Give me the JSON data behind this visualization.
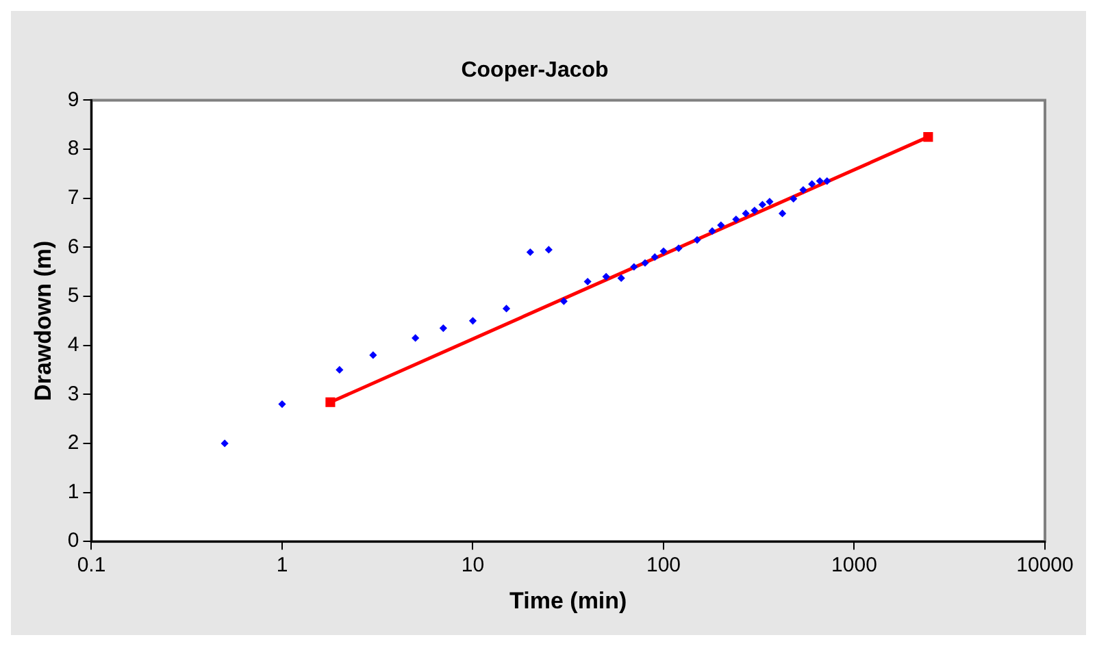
{
  "chart_data": {
    "type": "scatter",
    "title": "Cooper-Jacob",
    "xlabel": "Time (min)",
    "ylabel": "Drawdown (m)",
    "log": "x",
    "grid": false,
    "legend": false,
    "xlim": [
      0.1,
      10000
    ],
    "xticks": [
      0.1,
      1,
      10,
      100,
      1000,
      10000
    ],
    "ylim": [
      0,
      9
    ],
    "yticks": [
      0,
      1,
      2,
      3,
      4,
      5,
      6,
      7,
      8,
      9
    ],
    "series": [
      {
        "type": "scatter",
        "color": "#0000ff",
        "marker": "diamond",
        "x": [
          0.5,
          1,
          2,
          3,
          5,
          7,
          10,
          15,
          20,
          25,
          30,
          40,
          50,
          60,
          70,
          80,
          90,
          100,
          120,
          150,
          180,
          200,
          240,
          270,
          300,
          330,
          360,
          420,
          480,
          540,
          600,
          660,
          720
        ],
        "values": [
          2.0,
          2.8,
          3.5,
          3.8,
          4.15,
          4.35,
          4.5,
          4.75,
          5.9,
          5.95,
          4.9,
          5.3,
          5.4,
          5.37,
          5.6,
          5.68,
          5.8,
          5.92,
          5.98,
          6.15,
          6.33,
          6.45,
          6.57,
          6.69,
          6.75,
          6.87,
          6.93,
          6.69,
          6.99,
          7.17,
          7.29,
          7.35,
          7.35
        ]
      },
      {
        "type": "line",
        "color": "#ff0000",
        "marker": "square",
        "x": [
          1.79,
          2440
        ],
        "values": [
          2.84,
          8.25
        ]
      }
    ]
  }
}
